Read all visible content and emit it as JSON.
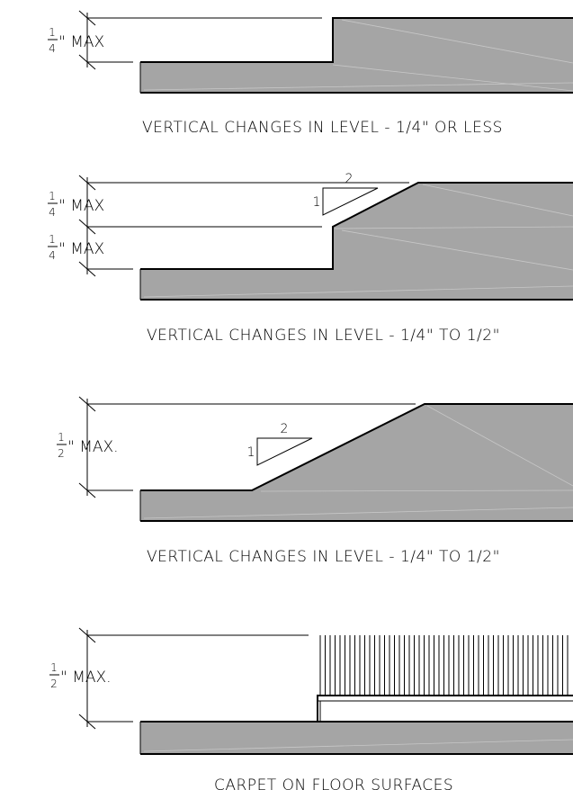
{
  "details": [
    {
      "caption": "VERTICAL CHANGES IN LEVEL - 1/4\" OR LESS",
      "dims": [
        {
          "num": "1",
          "den": "4",
          "suffix": "\" MAX"
        }
      ]
    },
    {
      "caption": "VERTICAL CHANGES IN LEVEL - 1/4\" TO 1/2\"",
      "dims": [
        {
          "num": "1",
          "den": "4",
          "suffix": "\" MAX"
        },
        {
          "num": "1",
          "den": "4",
          "suffix": "\" MAX"
        }
      ],
      "slope": {
        "rise": "1",
        "run": "2"
      }
    },
    {
      "caption": "VERTICAL CHANGES IN LEVEL - 1/4\" TO 1/2\"",
      "dims": [
        {
          "num": "1",
          "den": "2",
          "suffix": "\" MAX."
        }
      ],
      "slope": {
        "rise": "1",
        "run": "2"
      }
    },
    {
      "caption": "CARPET ON FLOOR SURFACES",
      "dims": [
        {
          "num": "1",
          "den": "2",
          "suffix": "\" MAX."
        }
      ]
    }
  ]
}
